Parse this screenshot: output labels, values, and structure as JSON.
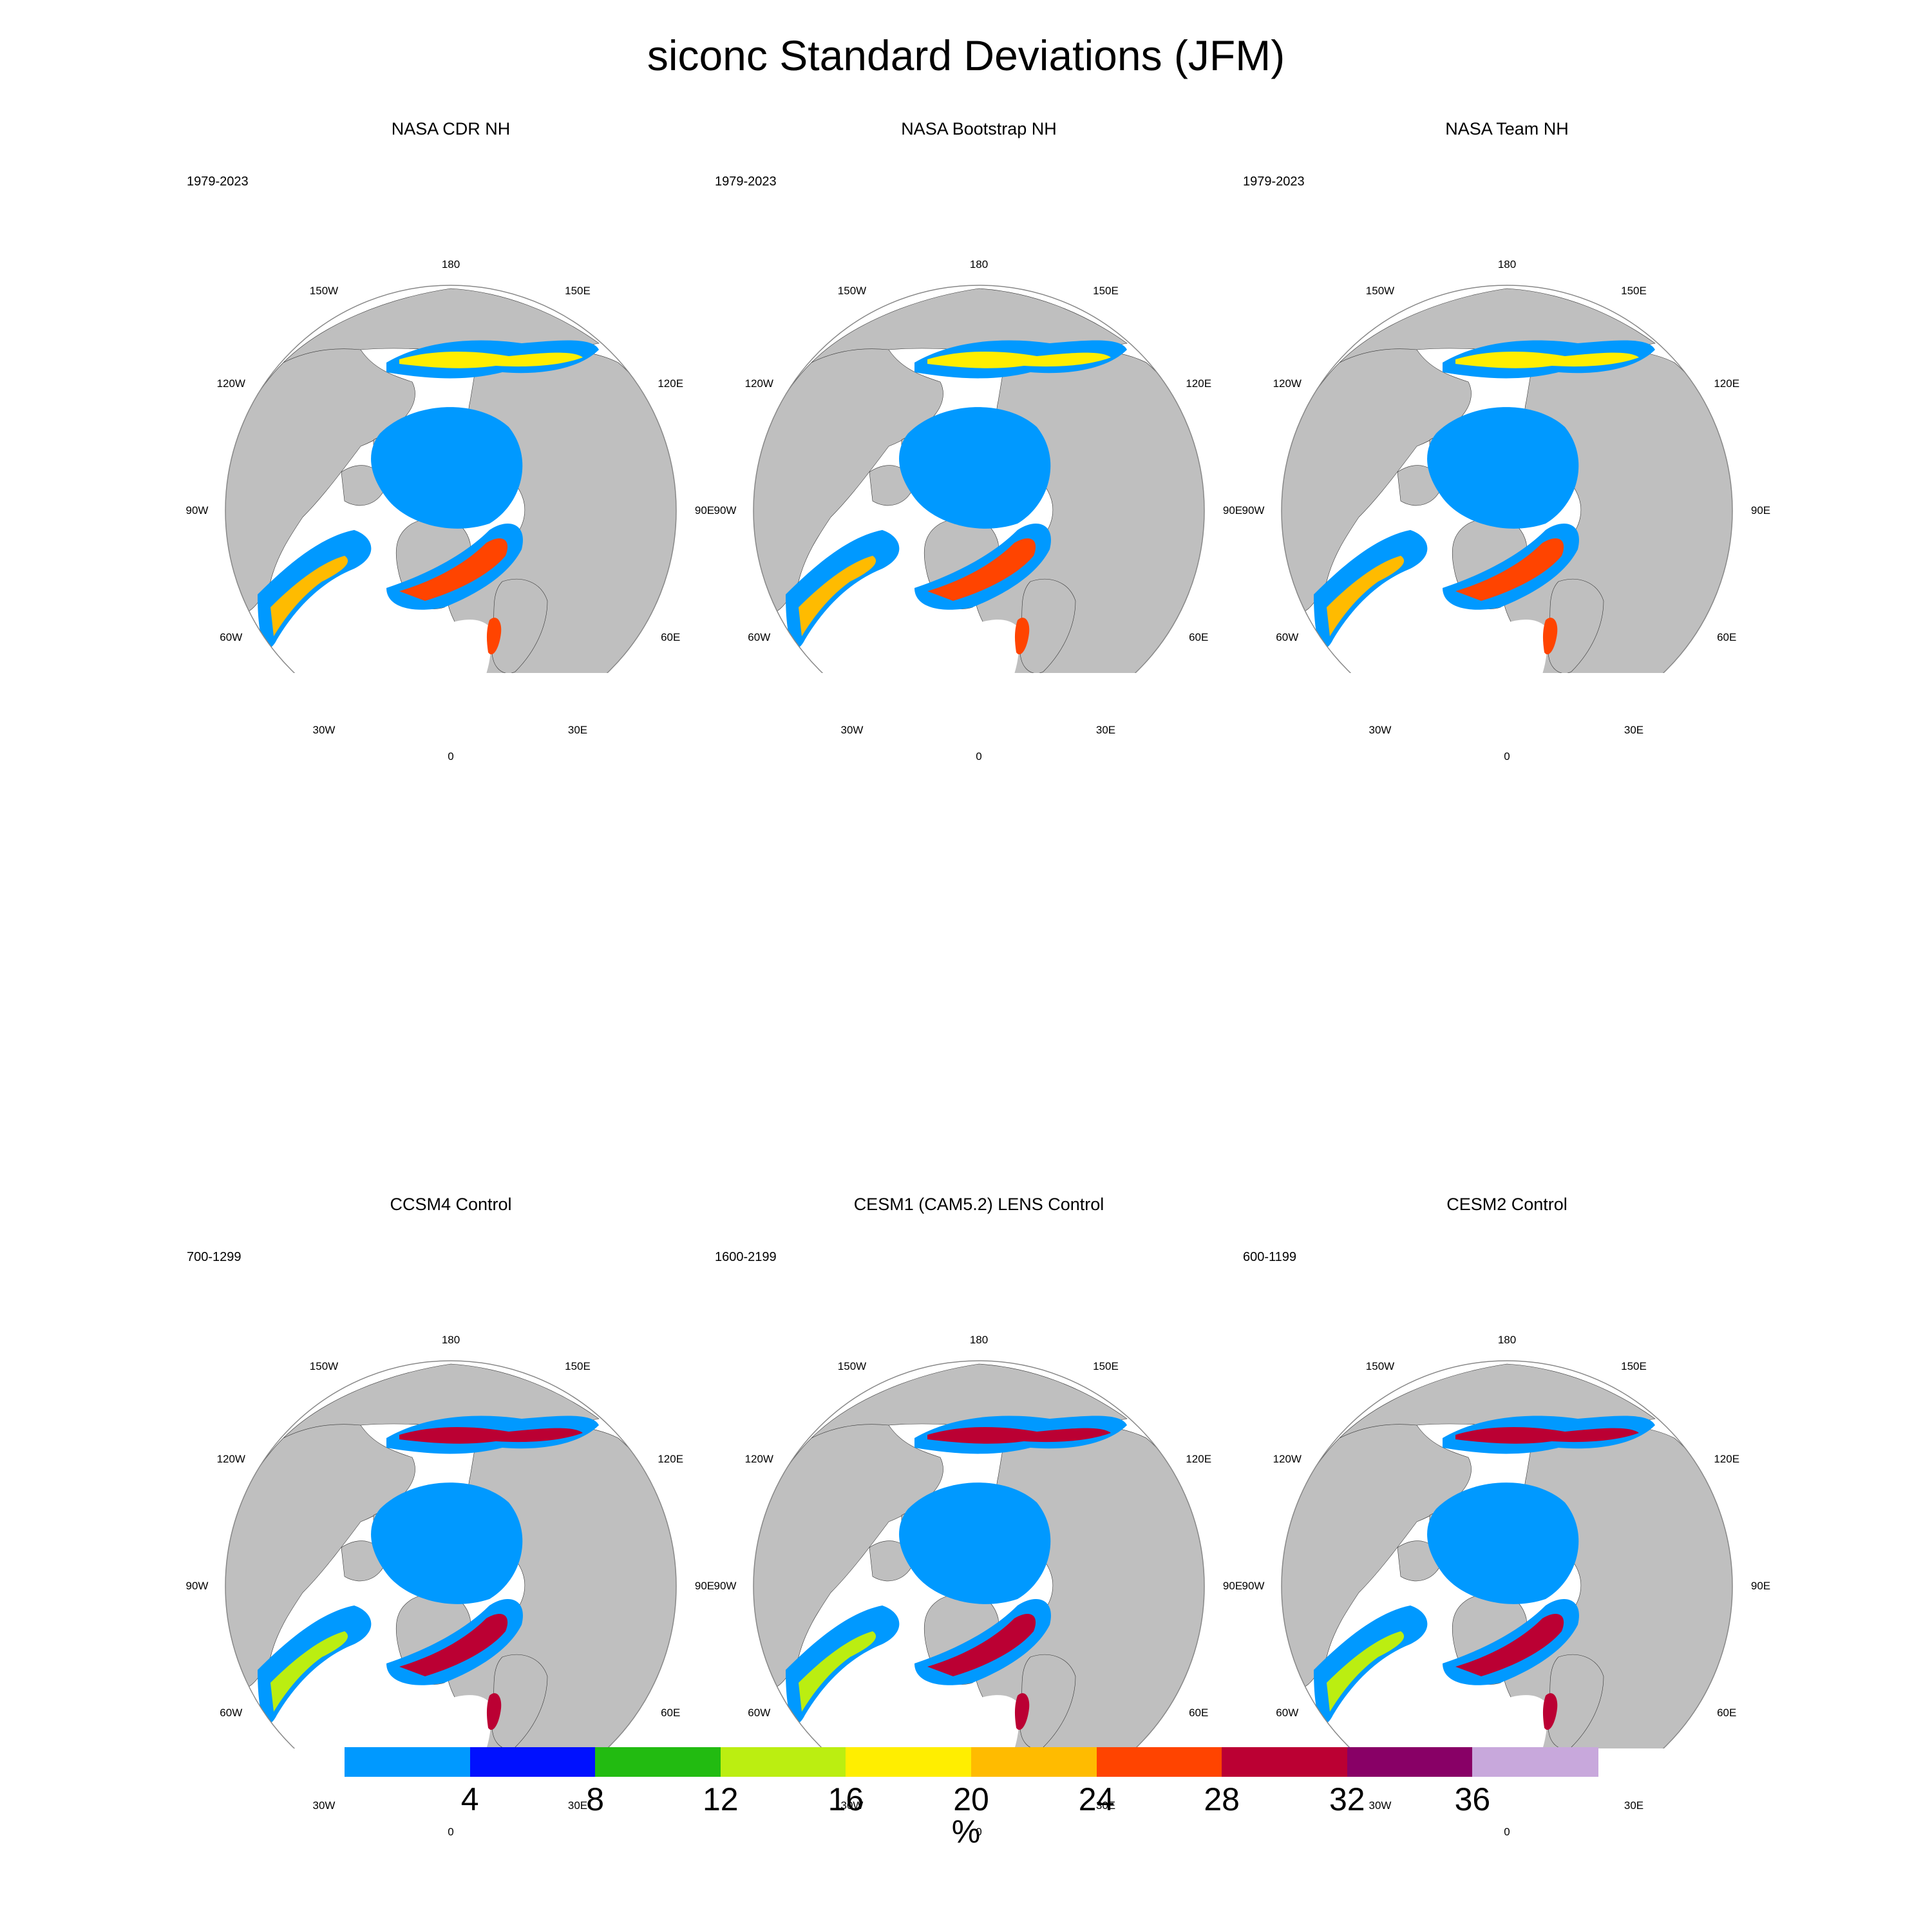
{
  "title": "siconc Standard Deviations (JFM)",
  "panels": [
    {
      "title": "NASA CDR NH",
      "period": "1979-2023"
    },
    {
      "title": "NASA Bootstrap NH",
      "period": "1979-2023"
    },
    {
      "title": "NASA Team NH",
      "period": "1979-2023"
    },
    {
      "title": "CCSM4 Control",
      "period": "700-1299"
    },
    {
      "title": "CESM1 (CAM5.2) LENS Control",
      "period": "1600-2199"
    },
    {
      "title": "CESM2 Control",
      "period": "600-1199"
    }
  ],
  "lon_labels": {
    "top": "180",
    "p150w": "150W",
    "p150e": "150E",
    "p120w": "120W",
    "p120e": "120E",
    "p90w": "90W",
    "p90e": "90E",
    "p60w": "60W",
    "p60e": "60E",
    "p30w": "30W",
    "p30e": "30E",
    "bottom": "0"
  },
  "colorbar": {
    "units": "%",
    "ticks": [
      "4",
      "8",
      "12",
      "16",
      "20",
      "24",
      "28",
      "32",
      "36"
    ],
    "colors": [
      "#0099ff",
      "#0011ff",
      "#22bb11",
      "#bbee11",
      "#ffee00",
      "#ffbb00",
      "#ff4400",
      "#bb0033",
      "#880066",
      "#c8a8dc"
    ]
  },
  "map_colors": {
    "land": "#bfbfbf",
    "ocean": "#ffffff",
    "ice_low": "#0099ff"
  }
}
